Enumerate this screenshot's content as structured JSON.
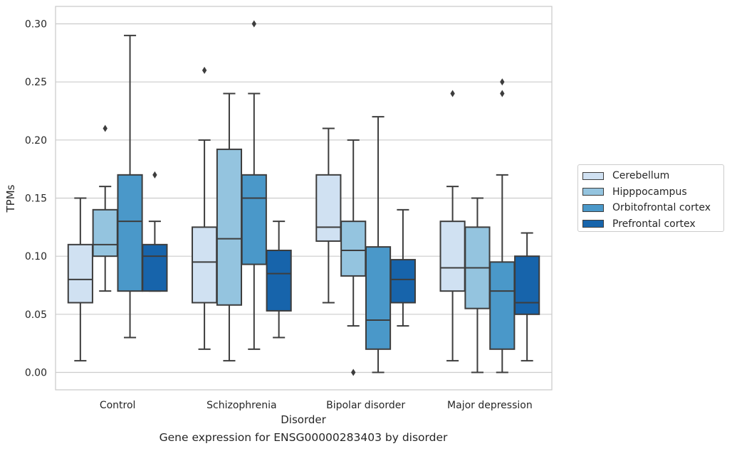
{
  "chart_data": {
    "type": "box",
    "xlabel": "Disorder",
    "ylabel": "TPMs",
    "caption": "Gene expression for ENSG00000283403 by disorder",
    "categories": [
      "Control",
      "Schizophrenia",
      "Bipolar disorder",
      "Major depression"
    ],
    "ylim": [
      -0.015,
      0.315
    ],
    "yticks": [
      "0.00",
      "0.05",
      "0.10",
      "0.15",
      "0.20",
      "0.25",
      "0.30"
    ],
    "ytick_values": [
      0,
      0.05,
      0.1,
      0.15,
      0.2,
      0.25,
      0.3
    ],
    "grid": "horizontal",
    "legend_position": "outside-right",
    "series": [
      {
        "name": "Cerebellum",
        "color": "#d0e1f2",
        "boxes": [
          {
            "whislo": 0.01,
            "q1": 0.06,
            "med": 0.08,
            "q3": 0.11,
            "whishi": 0.15,
            "fliers": []
          },
          {
            "whislo": 0.02,
            "q1": 0.06,
            "med": 0.095,
            "q3": 0.125,
            "whishi": 0.2,
            "fliers": [
              0.26
            ]
          },
          {
            "whislo": 0.06,
            "q1": 0.113,
            "med": 0.125,
            "q3": 0.17,
            "whishi": 0.21,
            "fliers": []
          },
          {
            "whislo": 0.01,
            "q1": 0.07,
            "med": 0.09,
            "q3": 0.13,
            "whishi": 0.16,
            "fliers": [
              0.24
            ]
          }
        ]
      },
      {
        "name": "Hipppocampus",
        "color": "#94c4df",
        "boxes": [
          {
            "whislo": 0.07,
            "q1": 0.1,
            "med": 0.11,
            "q3": 0.14,
            "whishi": 0.16,
            "fliers": [
              0.21
            ]
          },
          {
            "whislo": 0.01,
            "q1": 0.058,
            "med": 0.115,
            "q3": 0.192,
            "whishi": 0.24,
            "fliers": []
          },
          {
            "whislo": 0.04,
            "q1": 0.083,
            "med": 0.105,
            "q3": 0.13,
            "whishi": 0.2,
            "fliers": [
              0.0
            ]
          },
          {
            "whislo": 0.0,
            "q1": 0.055,
            "med": 0.09,
            "q3": 0.125,
            "whishi": 0.15,
            "fliers": []
          }
        ]
      },
      {
        "name": "Orbitofrontal cortex",
        "color": "#4a98c9",
        "boxes": [
          {
            "whislo": 0.03,
            "q1": 0.07,
            "med": 0.13,
            "q3": 0.17,
            "whishi": 0.29,
            "fliers": []
          },
          {
            "whislo": 0.02,
            "q1": 0.093,
            "med": 0.15,
            "q3": 0.17,
            "whishi": 0.24,
            "fliers": [
              0.3
            ]
          },
          {
            "whislo": 0.0,
            "q1": 0.02,
            "med": 0.045,
            "q3": 0.108,
            "whishi": 0.22,
            "fliers": []
          },
          {
            "whislo": 0.0,
            "q1": 0.02,
            "med": 0.07,
            "q3": 0.095,
            "whishi": 0.17,
            "fliers": [
              0.24,
              0.25
            ]
          }
        ]
      },
      {
        "name": "Prefrontal cortex",
        "color": "#1764ab",
        "boxes": [
          {
            "whislo": 0.07,
            "q1": 0.07,
            "med": 0.1,
            "q3": 0.11,
            "whishi": 0.13,
            "fliers": [
              0.17
            ]
          },
          {
            "whislo": 0.03,
            "q1": 0.053,
            "med": 0.085,
            "q3": 0.105,
            "whishi": 0.13,
            "fliers": []
          },
          {
            "whislo": 0.04,
            "q1": 0.06,
            "med": 0.08,
            "q3": 0.097,
            "whishi": 0.14,
            "fliers": []
          },
          {
            "whislo": 0.01,
            "q1": 0.05,
            "med": 0.06,
            "q3": 0.1,
            "whishi": 0.12,
            "fliers": []
          }
        ]
      }
    ]
  }
}
